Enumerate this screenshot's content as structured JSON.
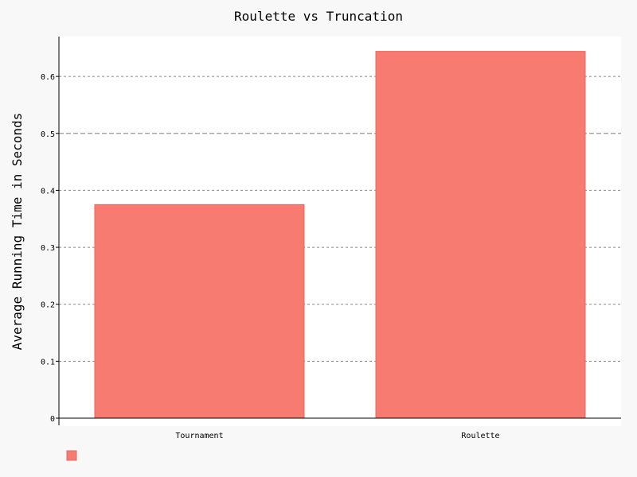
{
  "chart_data": {
    "type": "bar",
    "title": "Roulette vs Truncation",
    "xlabel": "",
    "ylabel": "Average Running Time in Seconds",
    "categories": [
      "Tournament",
      "Roulette"
    ],
    "values": [
      0.375,
      0.644
    ],
    "ylim": [
      0,
      0.67
    ],
    "yticks": [
      0,
      0.1,
      0.2,
      0.3,
      0.4,
      0.5,
      0.6
    ],
    "ytick_labels": [
      "0",
      "0.1",
      "0.2",
      "0.3",
      "0.4",
      "0.5",
      "0.6"
    ],
    "grid": true,
    "legend": "bottom-left",
    "colors": {
      "background": "#f8f8f8",
      "plot_background": "#ffffff",
      "bar_fill": "#f77b71",
      "bar_stroke": "#e8675d",
      "grid": "#888888",
      "axis": "#000000"
    }
  }
}
